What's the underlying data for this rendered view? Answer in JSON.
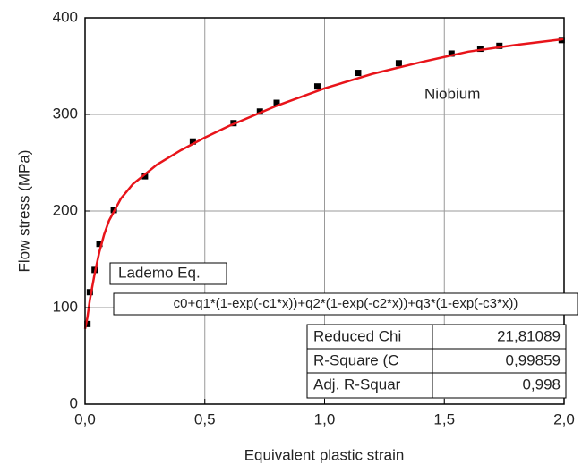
{
  "chart_data": {
    "type": "scatter",
    "xlabel": "Equivalent plastic strain",
    "ylabel": "Flow stress (MPa)",
    "annotation": "Niobium",
    "legend_title": "Lademo Eq.",
    "equation": "c0+q1*(1-exp(-c1*x))+q2*(1-exp(-c2*x))+q3*(1-exp(-c3*x))",
    "stats_table": {
      "rows": [
        [
          "Reduced Chi",
          "21,81089"
        ],
        [
          "R-Square (C",
          "0,99859"
        ],
        [
          "Adj. R-Squar",
          "0,998"
        ]
      ]
    },
    "xlim": [
      0,
      2
    ],
    "xticks": [
      {
        "value": 0,
        "label": "0,0"
      },
      {
        "value": 0.5,
        "label": "0,5"
      },
      {
        "value": 1,
        "label": "1,0"
      },
      {
        "value": 1.5,
        "label": "1,5"
      },
      {
        "value": 2,
        "label": "2,0"
      }
    ],
    "ylim": [
      0,
      400
    ],
    "yticks": [
      0,
      100,
      200,
      300,
      400
    ],
    "grid": true,
    "series": [
      {
        "type": "scatter",
        "color": "#000000",
        "x": [
          0.01,
          0.02,
          0.04,
          0.06,
          0.12,
          0.25,
          0.45,
          0.62,
          0.73,
          0.8,
          0.97,
          1.14,
          1.31,
          1.53,
          1.65,
          1.73,
          1.99
        ],
        "values": [
          83,
          116,
          139,
          166,
          201,
          236,
          272,
          291,
          303,
          312,
          329,
          343,
          353,
          363,
          368,
          371,
          377
        ]
      },
      {
        "type": "line",
        "color": "#e8141a",
        "x": [
          0,
          0.01,
          0.02,
          0.04,
          0.06,
          0.08,
          0.1,
          0.15,
          0.2,
          0.3,
          0.4,
          0.5,
          0.6,
          0.8,
          1.0,
          1.2,
          1.4,
          1.6,
          1.8,
          2.0
        ],
        "values": [
          78,
          90,
          108,
          135,
          158,
          176,
          190,
          213,
          228,
          248,
          263,
          276,
          288,
          309,
          327,
          342,
          354,
          365,
          372,
          378
        ]
      }
    ]
  }
}
